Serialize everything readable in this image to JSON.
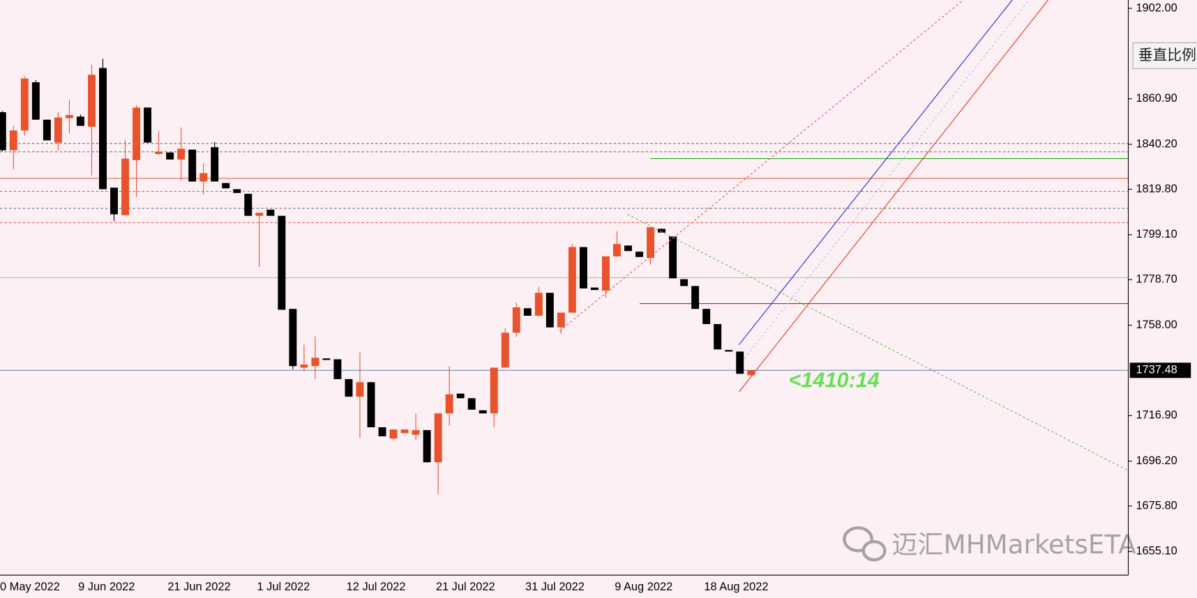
{
  "chart_data": {
    "type": "candlestick",
    "categories": [
      "0 May 2022",
      null,
      null,
      null,
      null,
      null,
      null,
      "9 Jun 2022",
      null,
      null,
      null,
      null,
      null,
      null,
      null,
      "21 Jun 2022",
      null,
      null,
      null,
      null,
      null,
      null,
      null,
      "1 Jul 2022",
      null,
      null,
      null,
      null,
      null,
      null,
      null,
      "12 Jul 2022",
      null,
      null,
      null,
      null,
      null,
      null,
      null,
      "21 Jul 2022",
      null,
      null,
      null,
      null,
      null,
      null,
      null,
      "31 Jul 2022",
      null,
      null,
      null,
      null,
      null,
      null,
      null,
      "9 Aug 2022",
      null,
      null,
      null,
      null,
      null,
      null,
      null,
      "18 Aug 2022",
      null,
      null,
      null,
      null
    ],
    "open": [
      1854.8,
      1837.5,
      1846.5,
      1868.4,
      1851.4,
      1841.0,
      1852.1,
      1852.8,
      1848.2,
      1874.9,
      1820.5,
      1808.0,
      1833.0,
      1856.9,
      1835.8,
      1836.5,
      1833.3,
      1837.8,
      1823.3,
      1838.9,
      1822.6,
      1819.8,
      1817.7,
      1807.7,
      1810.5,
      1807.7,
      1765.4,
      1738.7,
      1739.4,
      1742.9,
      1742.5,
      1733.5,
      1725.5,
      1732.1,
      1711.6,
      1706.5,
      1708.9,
      1708.2,
      1710.3,
      1695.7,
      1717.9,
      1726.9,
      1724.8,
      1719.3,
      1717.9,
      1738.7,
      1754.6,
      1765.7,
      1762.3,
      1772.7,
      1757.0,
      1763.7,
      1793.5,
      1775.1,
      1773.7,
      1789.3,
      1794.2,
      1791.4,
      1788.6,
      1801.8,
      1798.3,
      1778.9,
      1775.8,
      1765.4,
      1758.5,
      1746.7,
      1746.0,
      1735.3
    ],
    "high": [
      1855.5,
      1848.6,
      1871.1,
      1869.4,
      1851.4,
      1854.8,
      1860.4,
      1853.8,
      1876.3,
      1879.1,
      1820.5,
      1842.0,
      1858.0,
      1856.9,
      1846.2,
      1836.5,
      1847.9,
      1837.8,
      1831.6,
      1841.3,
      1822.6,
      1819.8,
      1817.7,
      1809.1,
      1810.5,
      1807.7,
      1765.4,
      1749.1,
      1752.9,
      1742.9,
      1742.5,
      1733.5,
      1745.6,
      1732.1,
      1711.6,
      1710.6,
      1710.6,
      1717.9,
      1710.3,
      1717.9,
      1739.4,
      1726.9,
      1724.8,
      1719.3,
      1738.7,
      1756.7,
      1768.2,
      1765.7,
      1775.4,
      1772.7,
      1763.7,
      1794.9,
      1793.5,
      1775.1,
      1789.3,
      1800.7,
      1794.2,
      1791.4,
      1802.8,
      1801.8,
      1798.3,
      1778.9,
      1775.8,
      1765.4,
      1758.5,
      1746.7,
      1746.0,
      1737.6
    ],
    "low": [
      1837.0,
      1828.8,
      1844.1,
      1851.4,
      1842.0,
      1837.5,
      1845.1,
      1848.6,
      1826.1,
      1819.8,
      1805.3,
      1808.0,
      1816.4,
      1841.0,
      1835.4,
      1833.3,
      1823.6,
      1823.3,
      1817.4,
      1823.3,
      1820.2,
      1818.1,
      1807.7,
      1784.5,
      1807.7,
      1765.0,
      1738.0,
      1737.0,
      1733.5,
      1742.2,
      1733.5,
      1725.5,
      1706.8,
      1711.6,
      1707.5,
      1705.8,
      1708.9,
      1705.8,
      1695.7,
      1681.1,
      1712.3,
      1724.8,
      1719.6,
      1717.9,
      1711.6,
      1738.7,
      1752.6,
      1762.3,
      1761.9,
      1757.0,
      1754.0,
      1763.7,
      1774.7,
      1774.0,
      1770.6,
      1789.0,
      1791.7,
      1789.0,
      1785.5,
      1800.1,
      1779.3,
      1775.8,
      1765.4,
      1758.5,
      1747.0,
      1746.0,
      1735.9,
      1735.0
    ],
    "close": [
      1837.5,
      1846.5,
      1870.1,
      1851.4,
      1842.0,
      1852.4,
      1853.5,
      1848.6,
      1871.8,
      1819.8,
      1808.4,
      1833.7,
      1856.9,
      1841.0,
      1836.8,
      1833.3,
      1838.2,
      1823.3,
      1827.1,
      1823.3,
      1820.2,
      1818.1,
      1807.7,
      1809.1,
      1807.7,
      1765.0,
      1739.4,
      1740.1,
      1743.2,
      1742.2,
      1733.5,
      1725.5,
      1732.1,
      1711.6,
      1707.5,
      1710.6,
      1710.6,
      1710.3,
      1695.7,
      1717.9,
      1726.6,
      1724.8,
      1719.6,
      1717.9,
      1738.7,
      1754.6,
      1766.1,
      1762.3,
      1772.7,
      1757.0,
      1763.7,
      1793.5,
      1774.7,
      1774.0,
      1789.3,
      1794.9,
      1791.7,
      1789.0,
      1802.5,
      1800.1,
      1779.3,
      1775.8,
      1765.4,
      1758.5,
      1747.0,
      1746.0,
      1735.9,
      1737.48
    ],
    "up_color": "#e8532b",
    "down_color": "#000000",
    "ylim": [
      1644.4,
      1905.8
    ],
    "yticks": [
      {
        "value": 1902,
        "label": "1902.00"
      },
      {
        "value": 1860.9,
        "label": "1860.90"
      },
      {
        "value": 1840.2,
        "label": "1840.20"
      },
      {
        "value": 1819.8,
        "label": "1819.80"
      },
      {
        "value": 1799.1,
        "label": "1799.10"
      },
      {
        "value": 1778.7,
        "label": "1778.70"
      },
      {
        "value": 1758,
        "label": "1758.00"
      },
      {
        "value": 1716.9,
        "label": "1716.90"
      },
      {
        "value": 1696.2,
        "label": "1696.20"
      },
      {
        "value": 1675.8,
        "label": "1675.80"
      },
      {
        "value": 1655.1,
        "label": "1655.10"
      }
    ],
    "current_price": 1737.48,
    "hlines": [
      {
        "value": 1840.6,
        "color": "#666666",
        "dash": true
      },
      {
        "value": 1836.8,
        "color": "#666666",
        "dash": true
      },
      {
        "value": 1824.7,
        "color": "#e8532b",
        "dash": false
      },
      {
        "value": 1818.8,
        "color": "#557755",
        "dash": true
      },
      {
        "value": 1811.1,
        "color": "#666666",
        "dash": true
      },
      {
        "value": 1804.6,
        "color": "#e05050",
        "dash": true
      },
      {
        "value": 1779.6,
        "color": "#7fd27f",
        "dash": false
      },
      {
        "value": 1833.7,
        "color": "#22aa22",
        "dash": false
      },
      {
        "value": 1767.8,
        "color": "#c00000",
        "dash": false
      }
    ],
    "annotation": "<1410:14",
    "watermark": "迈汇MHMarketsETA",
    "button": "垂直比例"
  }
}
